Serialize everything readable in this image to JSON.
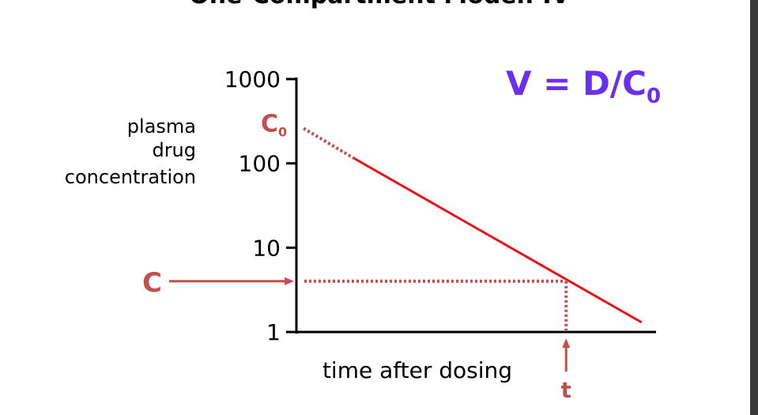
{
  "chart_data": {
    "type": "line",
    "title": "One-Compartment Model: IV",
    "ylabel": [
      "plasma",
      "drug",
      "concentration"
    ],
    "xlabel": "time after dosing",
    "yscale": "log",
    "ylim": [
      1,
      1000
    ],
    "yticks": [
      1,
      10,
      100,
      1000
    ],
    "xlim": [
      0,
      10
    ],
    "series": [
      {
        "color": "#c0504d",
        "dotted": true,
        "x": [
          0.2,
          1.6
        ],
        "values": [
          260,
          115
        ]
      },
      {
        "color": "#e8141b",
        "dotted": false,
        "x": [
          1.6,
          9.6
        ],
        "values": [
          115,
          1.3
        ]
      }
    ],
    "c0_label": {
      "text": "C",
      "subscript": "0",
      "value": 260
    },
    "c_marker": {
      "text": "C",
      "value": 4,
      "color": "#c0504d"
    },
    "t_marker": {
      "text": "t",
      "value": 7.5,
      "color": "#c0504d"
    },
    "formula": {
      "text": "V = D/C",
      "subscript": "0",
      "color": "#6a2ff0"
    }
  }
}
